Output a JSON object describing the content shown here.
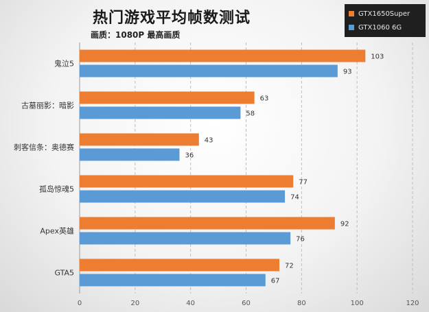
{
  "chart_data": {
    "type": "bar",
    "orientation": "horizontal",
    "title": "热门游戏平均帧数测试",
    "subtitle": "画质：1080P 最高画质",
    "xlabel": "",
    "ylabel": "",
    "xlim": [
      0,
      120
    ],
    "xticks": [
      0,
      20,
      40,
      60,
      80,
      100,
      120
    ],
    "grid": "vertical-dashed",
    "legend_position": "top-right",
    "categories": [
      "鬼泣5",
      "古墓丽影：暗影",
      "刺客信条：奥德赛",
      "孤岛惊魂5",
      "Apex英雄",
      "GTA5"
    ],
    "series": [
      {
        "name": "GTX1650Super",
        "color": "#ed7d31",
        "values": [
          103,
          63,
          43,
          77,
          92,
          72
        ]
      },
      {
        "name": "GTX1060 6G",
        "color": "#5b9bd5",
        "values": [
          93,
          58,
          36,
          74,
          76,
          67
        ]
      }
    ]
  }
}
